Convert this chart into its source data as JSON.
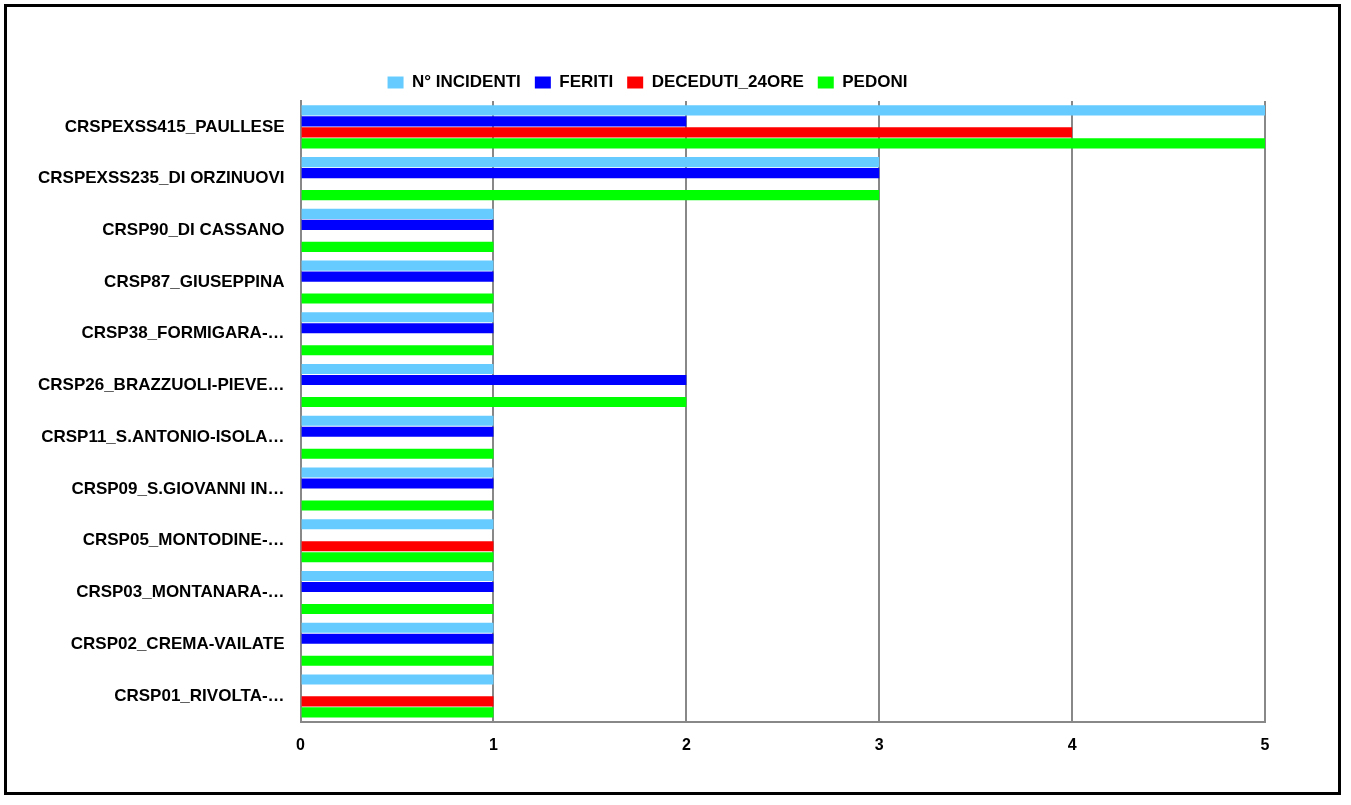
{
  "chart_data": {
    "type": "bar",
    "orientation": "horizontal",
    "legend": "top",
    "grid": "x",
    "categories": [
      "CRSPEXSS415_PAULLESE",
      "CRSPEXSS235_DI ORZINUOVI",
      "CRSP90_DI CASSANO",
      "CRSP87_GIUSEPPINA",
      "CRSP38_FORMIGARA-…",
      "CRSP26_BRAZZUOLI-PIEVE…",
      "CRSP11_S.ANTONIO-ISOLA…",
      "CRSP09_S.GIOVANNI IN…",
      "CRSP05_MONTODINE-…",
      "CRSP03_MONTANARA-…",
      "CRSP02_CREMA-VAILATE",
      "CRSP01_RIVOLTA-…"
    ],
    "series": [
      {
        "name": "N° INCIDENTI",
        "color": "#66ccff",
        "values": [
          5,
          3,
          1,
          1,
          1,
          1,
          1,
          1,
          1,
          1,
          1,
          1
        ]
      },
      {
        "name": "FERITI",
        "color": "#0000ff",
        "values": [
          2,
          3,
          1,
          1,
          1,
          2,
          1,
          1,
          0,
          1,
          1,
          0
        ]
      },
      {
        "name": "DECEDUTI_24ORE",
        "color": "#ff0000",
        "values": [
          4,
          0,
          0,
          0,
          0,
          0,
          0,
          0,
          1,
          0,
          0,
          1
        ]
      },
      {
        "name": "PEDONI",
        "color": "#00ff00",
        "values": [
          5,
          3,
          1,
          1,
          1,
          2,
          1,
          1,
          1,
          1,
          1,
          1
        ]
      }
    ],
    "xlim": [
      0,
      5
    ],
    "xticks": [
      0,
      1,
      2,
      3,
      4,
      5
    ]
  }
}
